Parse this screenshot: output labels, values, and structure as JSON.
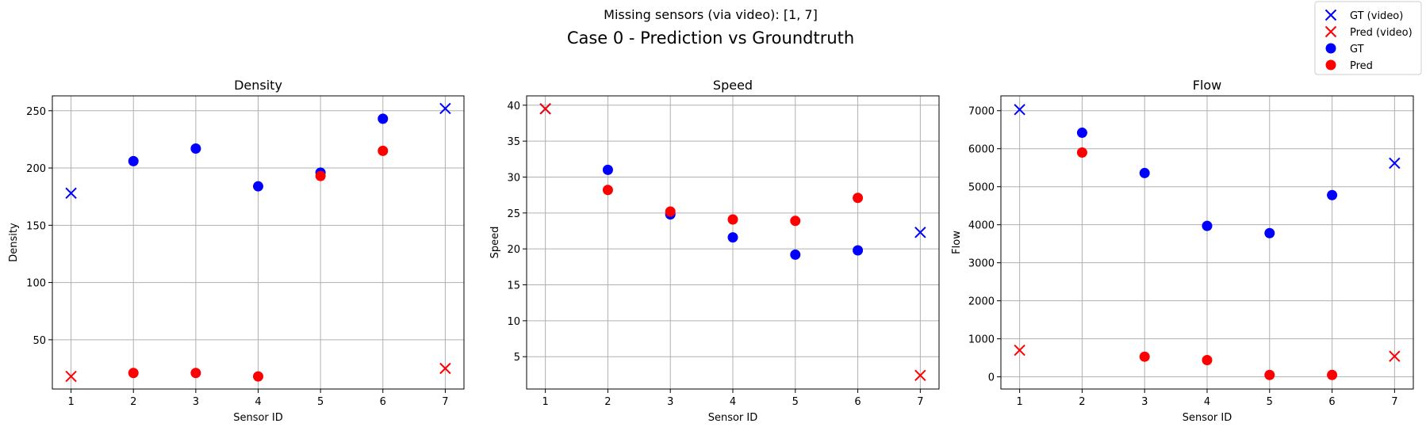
{
  "figure": {
    "suptitle_line1": "Missing sensors (via video): [1, 7]",
    "suptitle_line2": "Case 0 - Prediction vs Groundtruth"
  },
  "legend": {
    "placement": "top-right",
    "entries": [
      {
        "label": "GT (video)",
        "color": "#0000ff",
        "marker": "x"
      },
      {
        "label": "Pred (video)",
        "color": "#ff0000",
        "marker": "x"
      },
      {
        "label": "GT",
        "color": "#0000ff",
        "marker": "o"
      },
      {
        "label": "Pred",
        "color": "#ff0000",
        "marker": "o"
      }
    ]
  },
  "chart_data": [
    {
      "type": "scatter",
      "title": "Density",
      "xlabel": "Sensor ID",
      "ylabel": "Density",
      "grid": true,
      "xlim": [
        0.7,
        7.3
      ],
      "ylim": [
        7,
        263
      ],
      "xticks": [
        1,
        2,
        3,
        4,
        5,
        6,
        7
      ],
      "yticks": [
        50,
        100,
        150,
        200,
        250
      ],
      "series": [
        {
          "name": "GT (video)",
          "color": "#0000ff",
          "marker": "x",
          "x": [
            1,
            7
          ],
          "y": [
            178,
            252
          ]
        },
        {
          "name": "Pred (video)",
          "color": "#ff0000",
          "marker": "x",
          "x": [
            1,
            7
          ],
          "y": [
            18,
            25
          ]
        },
        {
          "name": "GT",
          "color": "#0000ff",
          "marker": "o",
          "x": [
            2,
            3,
            4,
            5,
            6
          ],
          "y": [
            206,
            217,
            184,
            196,
            243
          ]
        },
        {
          "name": "Pred",
          "color": "#ff0000",
          "marker": "o",
          "x": [
            2,
            3,
            4,
            5,
            6
          ],
          "y": [
            21,
            21,
            18,
            193,
            215
          ]
        }
      ]
    },
    {
      "type": "scatter",
      "title": "Speed",
      "xlabel": "Sensor ID",
      "ylabel": "Speed",
      "grid": true,
      "xlim": [
        0.7,
        7.3
      ],
      "ylim": [
        0.5,
        41.3
      ],
      "xticks": [
        1,
        2,
        3,
        4,
        5,
        6,
        7
      ],
      "yticks": [
        5,
        10,
        15,
        20,
        25,
        30,
        35,
        40
      ],
      "series": [
        {
          "name": "GT (video)",
          "color": "#0000ff",
          "marker": "x",
          "x": [
            1,
            7
          ],
          "y": [
            39.5,
            22.3
          ]
        },
        {
          "name": "Pred (video)",
          "color": "#ff0000",
          "marker": "x",
          "x": [
            1,
            7
          ],
          "y": [
            39.5,
            2.4
          ]
        },
        {
          "name": "GT",
          "color": "#0000ff",
          "marker": "o",
          "x": [
            2,
            3,
            4,
            5,
            6
          ],
          "y": [
            31.0,
            24.8,
            21.6,
            19.2,
            19.8
          ]
        },
        {
          "name": "Pred",
          "color": "#ff0000",
          "marker": "o",
          "x": [
            2,
            3,
            4,
            5,
            6
          ],
          "y": [
            28.2,
            25.2,
            24.1,
            23.9,
            27.1
          ]
        }
      ]
    },
    {
      "type": "scatter",
      "title": "Flow",
      "xlabel": "Sensor ID",
      "ylabel": "Flow",
      "grid": true,
      "xlim": [
        0.7,
        7.3
      ],
      "ylim": [
        -320,
        7390
      ],
      "xticks": [
        1,
        2,
        3,
        4,
        5,
        6,
        7
      ],
      "yticks": [
        0,
        1000,
        2000,
        3000,
        4000,
        5000,
        6000,
        7000
      ],
      "series": [
        {
          "name": "GT (video)",
          "color": "#0000ff",
          "marker": "x",
          "x": [
            1,
            7
          ],
          "y": [
            7030,
            5620
          ]
        },
        {
          "name": "Pred (video)",
          "color": "#ff0000",
          "marker": "x",
          "x": [
            1,
            7
          ],
          "y": [
            700,
            540
          ]
        },
        {
          "name": "GT",
          "color": "#0000ff",
          "marker": "o",
          "x": [
            2,
            3,
            4,
            5,
            6
          ],
          "y": [
            6420,
            5360,
            3970,
            3780,
            4780
          ]
        },
        {
          "name": "Pred",
          "color": "#ff0000",
          "marker": "o",
          "x": [
            2,
            3,
            4,
            5,
            6
          ],
          "y": [
            5900,
            530,
            440,
            50,
            50
          ]
        }
      ]
    }
  ]
}
